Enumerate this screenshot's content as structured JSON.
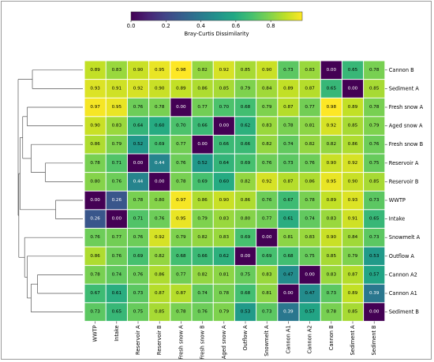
{
  "chart_data": {
    "type": "heatmap",
    "colorbar": {
      "label": "Bray-Curtis Dissimilarity",
      "ticks": [
        0.0,
        0.2,
        0.4,
        0.6,
        0.8
      ],
      "tick_labels": [
        "0.0",
        "0.2",
        "0.4",
        "0.6",
        "0.8"
      ],
      "range": [
        0.0,
        0.98
      ],
      "colormap": "viridis"
    },
    "row_labels": [
      "Cannon B",
      "Sediment A",
      "Fresh snow A",
      "Aged snow A",
      "Fresh snow B",
      "Reservoir A",
      "Reservoir B",
      "WWTP",
      "Intake",
      "Snowmelt A",
      "Outflow A",
      "Cannon A2",
      "Cannon A1",
      "Sediment B"
    ],
    "col_labels": [
      "WWTP",
      "Intake",
      "Reservoir A",
      "Reservoir B",
      "Fresh snow A",
      "Fresh snow B",
      "Aged snow A",
      "Outflow A",
      "Snowmelt A",
      "Cannon A1",
      "Cannon A2",
      "Cannon B",
      "Sediment A",
      "Sediment B"
    ],
    "values": [
      [
        0.89,
        0.83,
        0.9,
        0.95,
        0.98,
        0.82,
        0.92,
        0.85,
        0.9,
        0.73,
        0.83,
        0.0,
        0.65,
        0.78
      ],
      [
        0.93,
        0.91,
        0.92,
        0.9,
        0.89,
        0.86,
        0.85,
        0.79,
        0.84,
        0.89,
        0.87,
        0.65,
        0.0,
        0.85
      ],
      [
        0.97,
        0.95,
        0.76,
        0.78,
        0.0,
        0.77,
        0.7,
        0.68,
        0.79,
        0.87,
        0.77,
        0.98,
        0.89,
        0.78
      ],
      [
        0.9,
        0.83,
        0.64,
        0.6,
        0.7,
        0.66,
        0.0,
        0.62,
        0.83,
        0.78,
        0.81,
        0.92,
        0.85,
        0.79
      ],
      [
        0.86,
        0.79,
        0.52,
        0.69,
        0.77,
        0.0,
        0.66,
        0.66,
        0.82,
        0.74,
        0.82,
        0.82,
        0.86,
        0.76
      ],
      [
        0.78,
        0.71,
        0.0,
        0.44,
        0.76,
        0.52,
        0.64,
        0.69,
        0.76,
        0.73,
        0.76,
        0.9,
        0.92,
        0.75
      ],
      [
        0.8,
        0.76,
        0.44,
        0.0,
        0.78,
        0.69,
        0.6,
        0.82,
        0.92,
        0.87,
        0.86,
        0.95,
        0.9,
        0.85
      ],
      [
        0.0,
        0.26,
        0.78,
        0.8,
        0.97,
        0.86,
        0.9,
        0.86,
        0.76,
        0.67,
        0.78,
        0.89,
        0.93,
        0.73
      ],
      [
        0.26,
        0.0,
        0.71,
        0.76,
        0.95,
        0.79,
        0.83,
        0.8,
        0.77,
        0.61,
        0.74,
        0.83,
        0.91,
        0.65
      ],
      [
        0.76,
        0.77,
        0.76,
        0.92,
        0.79,
        0.82,
        0.83,
        0.69,
        0.0,
        0.81,
        0.83,
        0.9,
        0.84,
        0.73
      ],
      [
        0.86,
        0.76,
        0.69,
        0.82,
        0.68,
        0.66,
        0.62,
        0.0,
        0.69,
        0.68,
        0.75,
        0.85,
        0.79,
        0.53
      ],
      [
        0.78,
        0.74,
        0.76,
        0.86,
        0.77,
        0.82,
        0.81,
        0.75,
        0.83,
        0.47,
        0.0,
        0.83,
        0.87,
        0.57
      ],
      [
        0.67,
        0.61,
        0.73,
        0.87,
        0.87,
        0.74,
        0.78,
        0.68,
        0.81,
        0.0,
        0.47,
        0.73,
        0.89,
        0.39
      ],
      [
        0.73,
        0.65,
        0.75,
        0.85,
        0.78,
        0.76,
        0.79,
        0.53,
        0.73,
        0.39,
        0.57,
        0.78,
        0.85,
        0.0
      ]
    ],
    "dendrogram": "row hierarchical clustering, drawn on the left"
  }
}
